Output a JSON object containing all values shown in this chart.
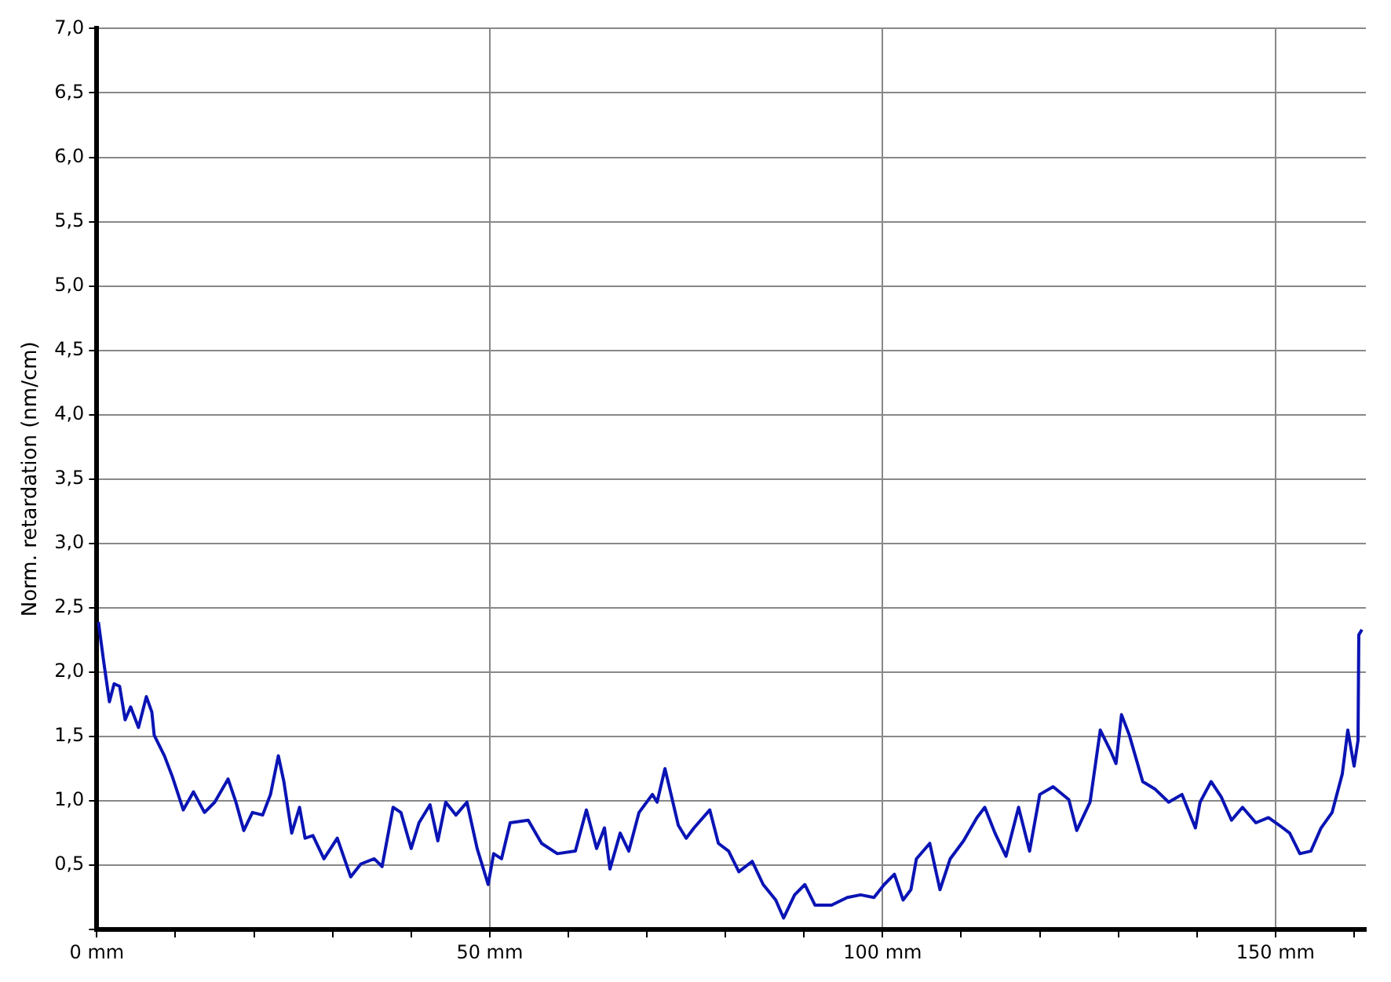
{
  "chart_data": {
    "type": "line",
    "ylabel": "Norm. retardation (nm/cm)",
    "xlim": [
      0,
      161.5
    ],
    "ylim": [
      0,
      7.0
    ],
    "xticks": [
      {
        "value": 0,
        "label": "0 mm"
      },
      {
        "value": 10,
        "label": null
      },
      {
        "value": 20,
        "label": null
      },
      {
        "value": 30,
        "label": null
      },
      {
        "value": 40,
        "label": null
      },
      {
        "value": 50,
        "label": "50 mm"
      },
      {
        "value": 60,
        "label": null
      },
      {
        "value": 70,
        "label": null
      },
      {
        "value": 80,
        "label": null
      },
      {
        "value": 90,
        "label": null
      },
      {
        "value": 100,
        "label": "100 mm"
      },
      {
        "value": 110,
        "label": null
      },
      {
        "value": 120,
        "label": null
      },
      {
        "value": 130,
        "label": null
      },
      {
        "value": 140,
        "label": null
      },
      {
        "value": 150,
        "label": "150 mm"
      },
      {
        "value": 160,
        "label": null
      }
    ],
    "yticks": [
      {
        "value": 0,
        "label": null
      },
      {
        "value": 0.5,
        "label": "0,5"
      },
      {
        "value": 1.0,
        "label": "1,0"
      },
      {
        "value": 1.5,
        "label": "1,5"
      },
      {
        "value": 2.0,
        "label": "2,0"
      },
      {
        "value": 2.5,
        "label": "2,5"
      },
      {
        "value": 3.0,
        "label": "3,0"
      },
      {
        "value": 3.5,
        "label": "3,5"
      },
      {
        "value": 4.0,
        "label": "4,0"
      },
      {
        "value": 4.5,
        "label": "4,5"
      },
      {
        "value": 5.0,
        "label": "5,0"
      },
      {
        "value": 5.5,
        "label": "5,5"
      },
      {
        "value": 6.0,
        "label": "6,0"
      },
      {
        "value": 6.5,
        "label": "6,5"
      },
      {
        "value": 7.0,
        "label": "7,0"
      }
    ],
    "grid": true,
    "marker": "none",
    "line_style": "solid",
    "series": [
      {
        "color": "#0a14b4",
        "x": [
          0.2,
          0.9,
          1.6,
          2.2,
          2.9,
          3.6,
          4.3,
          5.3,
          6.3,
          7.0,
          7.3,
          8.6,
          9.6,
          11.0,
          12.3,
          13.7,
          15.0,
          16.7,
          17.7,
          18.7,
          19.8,
          21.1,
          22.1,
          23.1,
          23.8,
          24.8,
          25.8,
          26.5,
          27.5,
          28.9,
          30.6,
          32.3,
          33.6,
          35.3,
          36.3,
          37.7,
          38.7,
          40.0,
          41.0,
          42.4,
          43.4,
          44.4,
          45.7,
          47.1,
          48.4,
          49.8,
          50.5,
          51.5,
          52.6,
          54.9,
          56.6,
          58.6,
          60.9,
          62.3,
          63.6,
          64.6,
          65.3,
          66.6,
          67.7,
          69.0,
          70.7,
          71.3,
          72.3,
          73.0,
          74.0,
          75.0,
          76.0,
          78.0,
          79.1,
          80.4,
          81.7,
          83.4,
          84.8,
          86.4,
          87.4,
          88.8,
          90.1,
          91.4,
          93.5,
          95.5,
          97.2,
          98.9,
          100.2,
          101.5,
          102.6,
          103.6,
          104.3,
          106.0,
          107.3,
          108.6,
          110.3,
          112.0,
          113.0,
          114.3,
          115.7,
          117.3,
          118.7,
          120.0,
          121.7,
          123.7,
          124.7,
          126.4,
          127.7,
          129.0,
          129.7,
          130.4,
          131.4,
          133.1,
          134.7,
          136.4,
          138.1,
          139.8,
          140.4,
          141.8,
          143.1,
          144.4,
          145.8,
          147.5,
          149.1,
          150.5,
          151.8,
          153.1,
          154.5,
          155.8,
          157.2,
          158.5,
          159.2,
          160.0,
          160.5,
          160.6,
          161.0
        ],
        "values": [
          2.39,
          2.07,
          1.77,
          1.91,
          1.89,
          1.63,
          1.73,
          1.57,
          1.81,
          1.69,
          1.51,
          1.35,
          1.19,
          0.93,
          1.07,
          0.91,
          0.99,
          1.17,
          0.99,
          0.77,
          0.91,
          0.89,
          1.05,
          1.35,
          1.15,
          0.75,
          0.95,
          0.71,
          0.73,
          0.55,
          0.71,
          0.41,
          0.51,
          0.55,
          0.49,
          0.95,
          0.91,
          0.63,
          0.83,
          0.97,
          0.69,
          0.99,
          0.89,
          0.99,
          0.63,
          0.35,
          0.59,
          0.55,
          0.83,
          0.85,
          0.67,
          0.59,
          0.61,
          0.93,
          0.63,
          0.79,
          0.47,
          0.75,
          0.61,
          0.91,
          1.05,
          0.99,
          1.25,
          1.07,
          0.81,
          0.71,
          0.79,
          0.93,
          0.67,
          0.61,
          0.45,
          0.53,
          0.35,
          0.23,
          0.09,
          0.27,
          0.35,
          0.19,
          0.19,
          0.25,
          0.27,
          0.25,
          0.35,
          0.43,
          0.23,
          0.31,
          0.55,
          0.67,
          0.31,
          0.55,
          0.69,
          0.87,
          0.95,
          0.75,
          0.57,
          0.95,
          0.61,
          1.05,
          1.11,
          1.01,
          0.77,
          0.99,
          1.55,
          1.39,
          1.29,
          1.67,
          1.51,
          1.15,
          1.09,
          0.99,
          1.05,
          0.79,
          0.99,
          1.15,
          1.03,
          0.85,
          0.95,
          0.83,
          0.87,
          0.81,
          0.75,
          0.59,
          0.61,
          0.79,
          0.91,
          1.21,
          1.55,
          1.27,
          1.47,
          2.29,
          2.33
        ]
      }
    ]
  }
}
